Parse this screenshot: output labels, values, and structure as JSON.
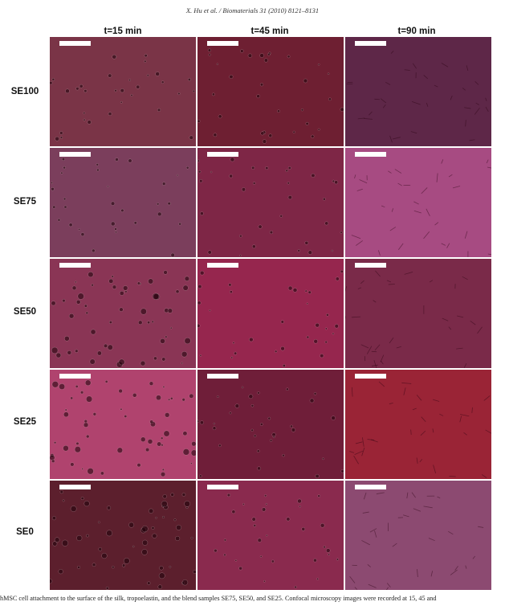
{
  "header": "X. Hu et al. / Biomaterials 31 (2010) 8121–8131",
  "columns": [
    "t=15 min",
    "t=45 min",
    "t=90 min"
  ],
  "rows": [
    "SE100",
    "SE75",
    "SE50",
    "SE25",
    "SE0"
  ],
  "panel_colors": [
    [
      "#7a3447",
      "#6e1f32",
      "#5e2748"
    ],
    [
      "#7b3e5c",
      "#7e2646",
      "#a74b82"
    ],
    [
      "#8a3555",
      "#96264e",
      "#7a2a49"
    ],
    [
      "#b0436e",
      "#6f1e39",
      "#9a2436"
    ],
    [
      "#5c1f2d",
      "#8a2a4e",
      "#8c4a71"
    ]
  ],
  "caption": "hMSC cell attachment to the surface of the silk, tropoelastin, and the blend samples SE75, SE50, and SE25. Confocal microscopy images were recorded at 15, 45 and"
}
